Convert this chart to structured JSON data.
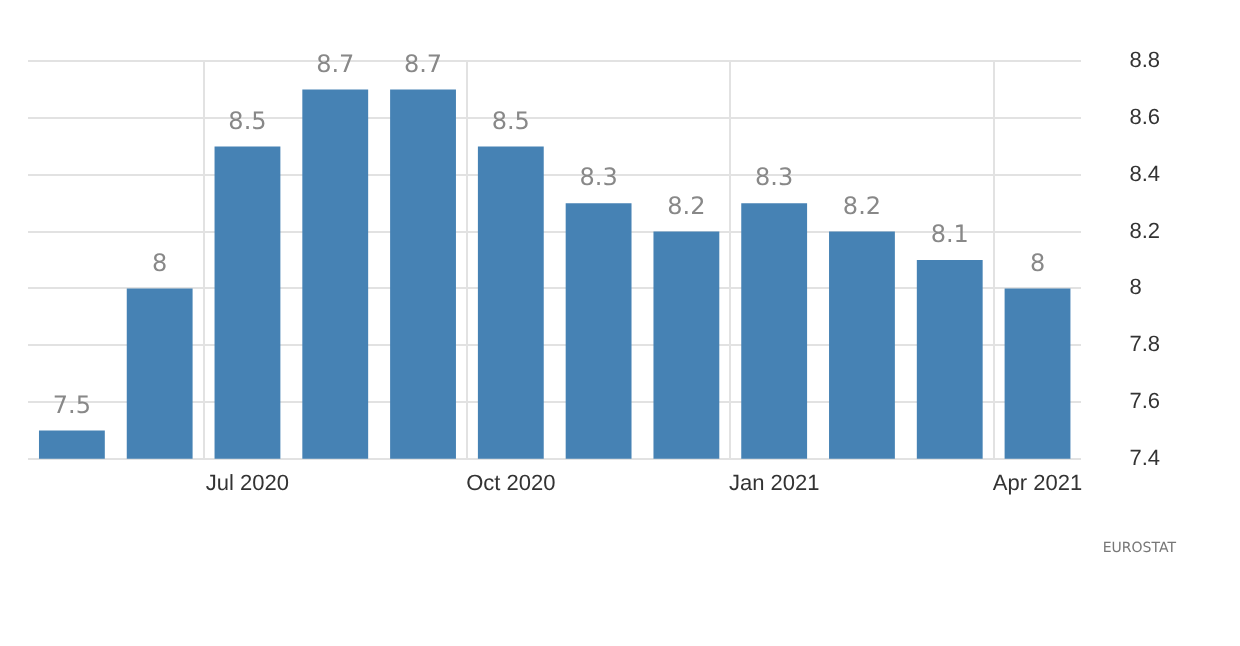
{
  "chart_data": {
    "type": "bar",
    "categories": [
      null,
      null,
      "Jul 2020",
      null,
      null,
      "Oct 2020",
      null,
      null,
      "Jan 2021",
      null,
      null,
      "Apr 2021"
    ],
    "values": [
      7.5,
      8,
      8.5,
      8.7,
      8.7,
      8.5,
      8.3,
      8.2,
      8.3,
      8.2,
      8.1,
      8
    ],
    "color": "#4682b4",
    "ylim": [
      7.4,
      8.8
    ],
    "yticks": [
      7.4,
      7.6,
      7.8,
      8,
      8.2,
      8.4,
      8.6,
      8.8
    ],
    "grid": true,
    "data_labels": true,
    "annotations": [
      "EUROSTAT"
    ]
  }
}
